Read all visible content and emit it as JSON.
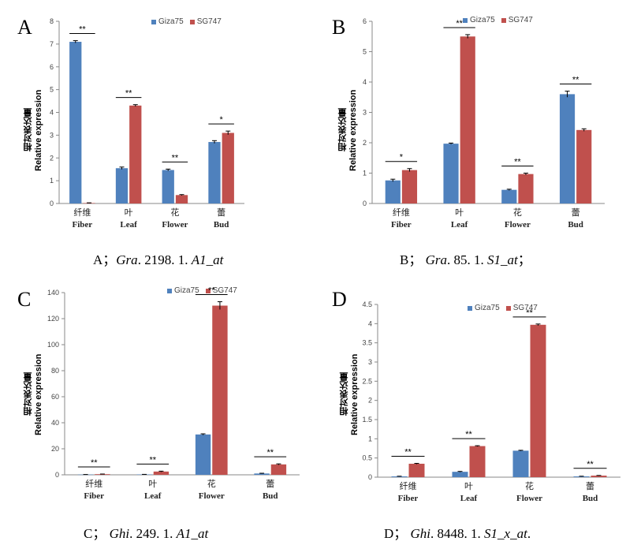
{
  "legend": {
    "giza_label": "Giza75",
    "sg_label": "SG747"
  },
  "colors": {
    "giza": "#4F81BD",
    "sg": "#C0504D"
  },
  "y_label": {
    "cn": "相对表达量",
    "en": "Relative expression"
  },
  "panels": [
    {
      "letter": "A",
      "caption_prefix": "A；",
      "caption_gene": "Gra",
      "caption_rest": ". 2198. 1. ",
      "caption_gene2": "A1_at",
      "caption_end": ""
    },
    {
      "letter": "B",
      "caption_prefix": "B； ",
      "caption_gene": "Gra",
      "caption_rest": ". 85. 1. ",
      "caption_gene2": "S1_at",
      "caption_end": "；"
    },
    {
      "letter": "C",
      "caption_prefix": "C； ",
      "caption_gene": "Ghi",
      "caption_rest": ". 249. 1. ",
      "caption_gene2": "A1_at",
      "caption_end": ""
    },
    {
      "letter": "D",
      "caption_prefix": "D； ",
      "caption_gene": "Ghi",
      "caption_rest": ". 8448. 1. ",
      "caption_gene2": "S1_x_at",
      "caption_end": "."
    }
  ],
  "chart_data": [
    {
      "type": "bar",
      "categories": [
        "Fiber",
        "Leaf",
        "Flower",
        "Bud"
      ],
      "categories_cn": [
        "纤维",
        "叶",
        "花",
        "蕾"
      ],
      "series": [
        {
          "name": "Giza75",
          "values": [
            7.1,
            1.55,
            1.47,
            2.7
          ],
          "errors": [
            0.05,
            0.05,
            0.04,
            0.06
          ]
        },
        {
          "name": "SG747",
          "values": [
            0.02,
            4.3,
            0.37,
            3.1
          ],
          "errors": [
            0.01,
            0.04,
            0.02,
            0.08
          ]
        }
      ],
      "significance": [
        "**",
        "**",
        "**",
        "*"
      ],
      "ylim": [
        0,
        8
      ],
      "yticks": [
        0,
        1,
        2,
        3,
        4,
        5,
        6,
        7,
        8
      ],
      "xlabel": "",
      "ylabel": "Relative expression"
    },
    {
      "type": "bar",
      "categories": [
        "Fiber",
        "Leaf",
        "Flower",
        "Bud"
      ],
      "categories_cn": [
        "纤维",
        "叶",
        "花",
        "蕾"
      ],
      "series": [
        {
          "name": "Giza75",
          "values": [
            0.76,
            1.97,
            0.45,
            3.6
          ],
          "errors": [
            0.04,
            0.02,
            0.02,
            0.1
          ]
        },
        {
          "name": "SG747",
          "values": [
            1.1,
            5.5,
            0.97,
            2.42
          ],
          "errors": [
            0.05,
            0.06,
            0.03,
            0.04
          ]
        }
      ],
      "significance": [
        "*",
        "**",
        "**",
        "**"
      ],
      "ylim": [
        0,
        6
      ],
      "yticks": [
        0,
        1,
        2,
        3,
        4,
        5,
        6
      ],
      "xlabel": "",
      "ylabel": "Relative expression"
    },
    {
      "type": "bar",
      "categories": [
        "Fiber",
        "Leaf",
        "Flower",
        "Bud"
      ],
      "categories_cn": [
        "纤维",
        "叶",
        "花",
        "蕾"
      ],
      "series": [
        {
          "name": "Giza75",
          "values": [
            0.2,
            0.3,
            31,
            1
          ],
          "errors": [
            0.05,
            0.05,
            0.5,
            0.2
          ]
        },
        {
          "name": "SG747",
          "values": [
            0.5,
            2.5,
            130,
            8
          ],
          "errors": [
            0.1,
            0.3,
            3,
            0.4
          ]
        }
      ],
      "significance": [
        "**",
        "**",
        "**",
        "**"
      ],
      "ylim": [
        0,
        140
      ],
      "yticks": [
        0,
        20,
        40,
        60,
        80,
        100,
        120,
        140
      ],
      "xlabel": "",
      "ylabel": "Relative expression"
    },
    {
      "type": "bar",
      "categories": [
        "Fiber",
        "Leaf",
        "Flower",
        "Bud"
      ],
      "categories_cn": [
        "纤维",
        "叶",
        "花",
        "蕾"
      ],
      "series": [
        {
          "name": "Giza75",
          "values": [
            0.02,
            0.14,
            0.69,
            0.02
          ],
          "errors": [
            0.005,
            0.01,
            0.01,
            0.005
          ]
        },
        {
          "name": "SG747",
          "values": [
            0.35,
            0.81,
            3.97,
            0.04
          ],
          "errors": [
            0.01,
            0.01,
            0.02,
            0.005
          ]
        }
      ],
      "significance": [
        "**",
        "**",
        "**",
        "**"
      ],
      "ylim": [
        0,
        4.5
      ],
      "yticks": [
        0,
        0.5,
        1,
        1.5,
        2,
        2.5,
        3,
        3.5,
        4,
        4.5
      ],
      "xlabel": "",
      "ylabel": "Relative expression"
    }
  ]
}
